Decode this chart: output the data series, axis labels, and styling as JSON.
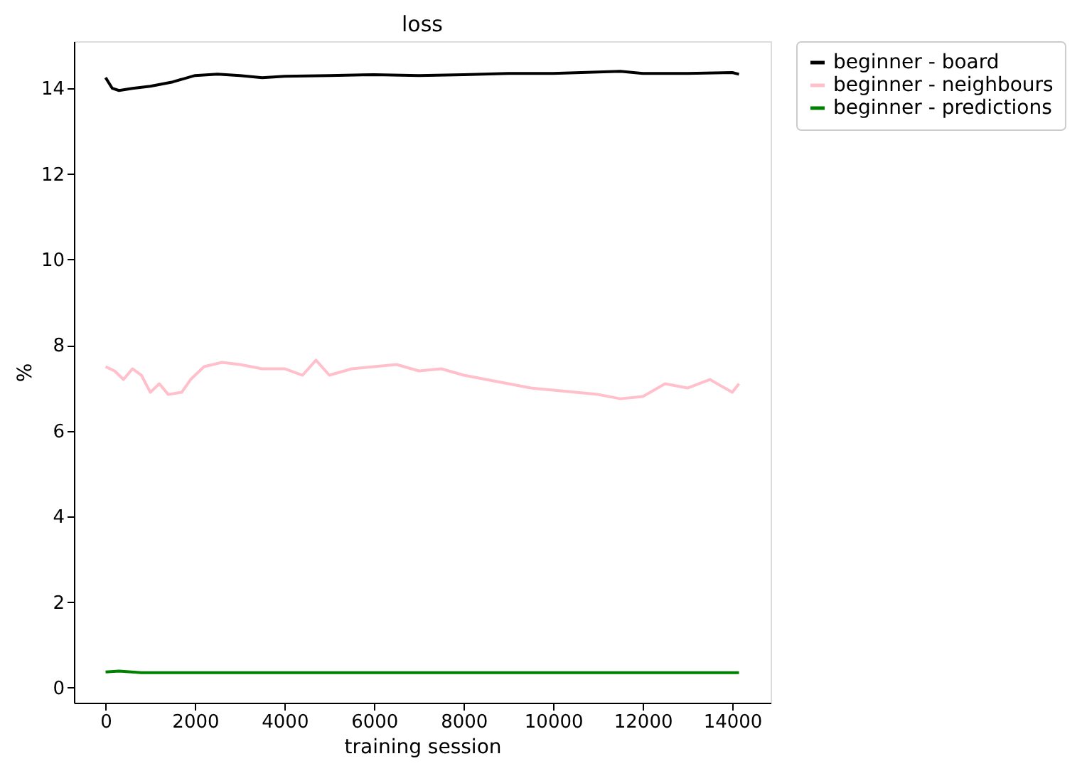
{
  "chart_data": {
    "type": "line",
    "title": "loss",
    "xlabel": "training session",
    "ylabel": "%",
    "xlim": [
      -707,
      14857
    ],
    "xticks": [
      0,
      2000,
      4000,
      6000,
      8000,
      10000,
      12000,
      14000
    ],
    "ylim": [
      -0.35,
      15.1
    ],
    "yticks": [
      0,
      2,
      4,
      6,
      8,
      10,
      12,
      14
    ],
    "grid": false,
    "legend": "right",
    "marker": "none",
    "line_style": "solid",
    "series": [
      {
        "name": "beginner - board",
        "color": "#000000",
        "x": [
          0,
          150,
          300,
          600,
          1000,
          1500,
          2000,
          2500,
          3000,
          3500,
          4000,
          5000,
          6000,
          7000,
          8000,
          9000,
          10000,
          11000,
          11500,
          12000,
          13000,
          14000,
          14150
        ],
        "values": [
          14.25,
          14.0,
          13.95,
          14.0,
          14.05,
          14.15,
          14.3,
          14.33,
          14.3,
          14.25,
          14.28,
          14.3,
          14.32,
          14.3,
          14.32,
          14.35,
          14.35,
          14.38,
          14.4,
          14.35,
          14.35,
          14.37,
          14.33
        ]
      },
      {
        "name": "beginner - neighbours",
        "color": "#ffc0cb",
        "x": [
          0,
          200,
          400,
          600,
          800,
          1000,
          1200,
          1400,
          1700,
          1900,
          2200,
          2600,
          3000,
          3500,
          4000,
          4400,
          4700,
          5000,
          5500,
          6000,
          6500,
          7000,
          7500,
          8000,
          8500,
          9000,
          9500,
          10000,
          10500,
          11000,
          11500,
          12000,
          12500,
          13000,
          13500,
          14000,
          14150
        ],
        "values": [
          7.5,
          7.4,
          7.2,
          7.45,
          7.3,
          6.9,
          7.1,
          6.85,
          6.9,
          7.2,
          7.5,
          7.6,
          7.55,
          7.45,
          7.45,
          7.3,
          7.65,
          7.3,
          7.45,
          7.5,
          7.55,
          7.4,
          7.45,
          7.3,
          7.2,
          7.1,
          7.0,
          6.95,
          6.9,
          6.85,
          6.75,
          6.8,
          7.1,
          7.0,
          7.2,
          6.9,
          7.1
        ]
      },
      {
        "name": "beginner - predictions",
        "color": "#008000",
        "x": [
          0,
          300,
          800,
          2000,
          4000,
          6000,
          8000,
          10000,
          12000,
          14000,
          14150
        ],
        "values": [
          0.37,
          0.39,
          0.35,
          0.35,
          0.35,
          0.35,
          0.35,
          0.35,
          0.35,
          0.35,
          0.35
        ]
      }
    ]
  }
}
